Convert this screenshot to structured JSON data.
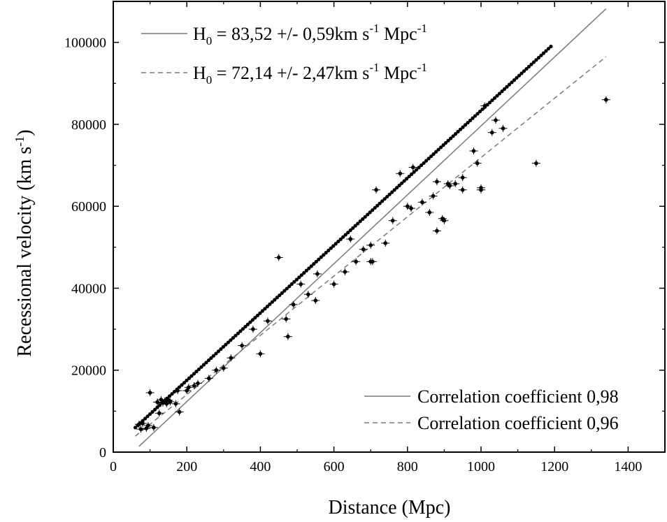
{
  "chart_data": {
    "type": "scatter",
    "xlabel": "Distance (Mpc)",
    "ylabel": "Recessional velocity (km s",
    "ylabel_sup": "-1",
    "ylabel_tail": ")",
    "xlim": [
      0,
      1500
    ],
    "ylim": [
      0,
      110000
    ],
    "xticks": [
      0,
      200,
      400,
      600,
      800,
      1000,
      1200,
      1400
    ],
    "yticks": [
      0,
      20000,
      40000,
      60000,
      80000,
      100000
    ],
    "grid": false,
    "legend": [
      {
        "position": "top-left",
        "entries": [
          {
            "style": "solid",
            "prefix": "H",
            "sub": "0",
            "text": " = 83,52 +/- 0,59km s",
            "sup1": "-1",
            "mid": " Mpc",
            "sup2": "-1"
          },
          {
            "style": "dashed",
            "prefix": "H",
            "sub": "0",
            "text": " = 72,14 +/- 2,47km s",
            "sup1": "-1",
            "mid": " Mpc",
            "sup2": "-1"
          }
        ]
      },
      {
        "position": "bottom-right",
        "entries": [
          {
            "style": "solid",
            "text": "Correlation coefficient 0,98"
          },
          {
            "style": "dashed",
            "text": "Correlation coefficient 0,96"
          }
        ]
      }
    ],
    "fits": [
      {
        "style": "solid",
        "color": "#7a7a7a",
        "x": [
          70,
          1340
        ],
        "y": [
          1400,
          108200
        ]
      },
      {
        "style": "dashed",
        "color": "#7a7a7a",
        "x": [
          60,
          1340
        ],
        "y": [
          3900,
          96500
        ]
      }
    ],
    "series": [
      {
        "points": [
          [
            70,
            6800
          ],
          [
            75,
            5600
          ],
          [
            80,
            7000
          ],
          [
            90,
            5800
          ],
          [
            95,
            6500
          ],
          [
            100,
            14500
          ],
          [
            110,
            6000
          ],
          [
            120,
            12200
          ],
          [
            125,
            9500
          ],
          [
            130,
            12800
          ],
          [
            135,
            12000
          ],
          [
            140,
            12500
          ],
          [
            145,
            11800
          ],
          [
            150,
            12700
          ],
          [
            155,
            12300
          ],
          [
            170,
            11800
          ],
          [
            175,
            15000
          ],
          [
            180,
            9800
          ],
          [
            200,
            15000
          ],
          [
            205,
            15800
          ],
          [
            220,
            16200
          ],
          [
            230,
            16800
          ],
          [
            260,
            18000
          ],
          [
            280,
            20000
          ],
          [
            300,
            20500
          ],
          [
            320,
            23000
          ],
          [
            350,
            26000
          ],
          [
            380,
            30000
          ],
          [
            400,
            24000
          ],
          [
            420,
            32000
          ],
          [
            450,
            47500
          ],
          [
            470,
            32500
          ],
          [
            475,
            28200
          ],
          [
            490,
            36000
          ],
          [
            510,
            41000
          ],
          [
            530,
            38500
          ],
          [
            550,
            37000
          ],
          [
            555,
            43500
          ],
          [
            600,
            41000
          ],
          [
            630,
            44000
          ],
          [
            645,
            52000
          ],
          [
            660,
            46500
          ],
          [
            680,
            49500
          ],
          [
            700,
            50500
          ],
          [
            700,
            46500
          ],
          [
            705,
            46500
          ],
          [
            715,
            64000
          ],
          [
            740,
            51000
          ],
          [
            760,
            56500
          ],
          [
            780,
            68000
          ],
          [
            800,
            60000
          ],
          [
            810,
            59500
          ],
          [
            815,
            69500
          ],
          [
            840,
            61000
          ],
          [
            860,
            58500
          ],
          [
            870,
            62500
          ],
          [
            880,
            66000
          ],
          [
            880,
            54000
          ],
          [
            895,
            57000
          ],
          [
            900,
            56500
          ],
          [
            910,
            65500
          ],
          [
            915,
            65000
          ],
          [
            930,
            65500
          ],
          [
            950,
            67000
          ],
          [
            950,
            64000
          ],
          [
            980,
            73500
          ],
          [
            990,
            70500
          ],
          [
            1000,
            64500
          ],
          [
            1000,
            64000
          ],
          [
            1010,
            84500
          ],
          [
            1030,
            78000
          ],
          [
            1040,
            81000
          ],
          [
            1060,
            79000
          ],
          [
            1150,
            70500
          ],
          [
            1340,
            86000
          ]
        ],
        "dense_points": [
          [
            60,
            6000
          ],
          [
            1190,
            99000
          ]
        ]
      }
    ]
  }
}
